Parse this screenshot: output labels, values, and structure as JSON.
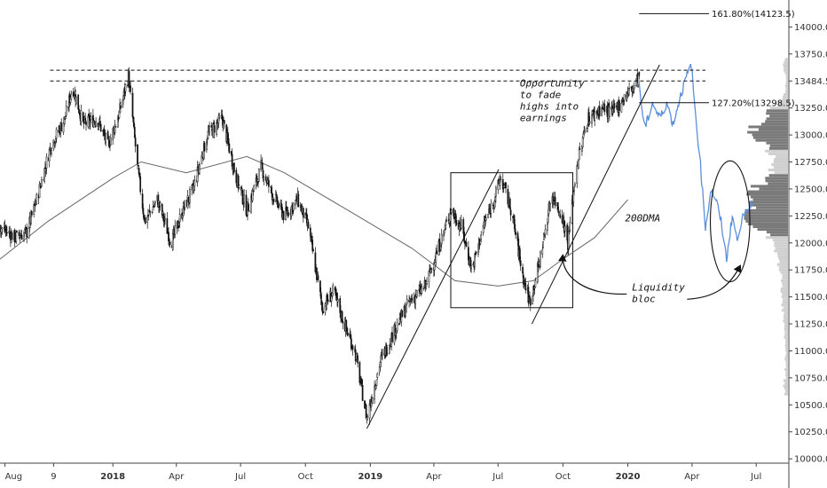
{
  "chart_data": {
    "type": "candlestick",
    "instrument_note": "",
    "x_tick_labels": [
      {
        "label": "Aug",
        "date": "2017-08-01",
        "bold": false
      },
      {
        "label": "9",
        "date": "2017-10-09",
        "bold": false
      },
      {
        "label": "2018",
        "date": "2018-01-01",
        "bold": true
      },
      {
        "label": "Apr",
        "date": "2018-04-01",
        "bold": false
      },
      {
        "label": "Jul",
        "date": "2018-07-01",
        "bold": false
      },
      {
        "label": "Oct",
        "date": "2018-10-01",
        "bold": false
      },
      {
        "label": "2019",
        "date": "2019-01-01",
        "bold": true
      },
      {
        "label": "Apr",
        "date": "2019-04-01",
        "bold": false
      },
      {
        "label": "Jul",
        "date": "2019-07-01",
        "bold": false
      },
      {
        "label": "Oct",
        "date": "2019-10-01",
        "bold": false
      },
      {
        "label": "2020",
        "date": "2020-01-01",
        "bold": true
      },
      {
        "label": "Apr",
        "date": "2020-04-01",
        "bold": false
      },
      {
        "label": "Jul",
        "date": "2020-07-01",
        "bold": false
      }
    ],
    "y_ticks": [
      10000,
      10250,
      10500,
      10750,
      11000,
      11250,
      11500,
      11750,
      12000,
      12250,
      12500,
      12750,
      13000,
      13250,
      13500,
      13750,
      14000
    ],
    "y_tick_labels": [
      "10000.0",
      "10250.0",
      "10500.0",
      "10750.0",
      "11000.0",
      "11250.0",
      "11500.0",
      "11750.0",
      "12000.0",
      "12250.0",
      "12500.0",
      "12750.0",
      "13000.0",
      "13250.0",
      "13484.5",
      "13750.0",
      "14000.0"
    ],
    "ylim": [
      9960,
      14250
    ],
    "xlim": [
      "2017-07-25",
      "2020-08-15"
    ],
    "price_path": [
      [
        "2017-07-25",
        12150
      ],
      [
        "2017-08-15",
        12050
      ],
      [
        "2017-09-01",
        12100
      ],
      [
        "2017-09-15",
        12400
      ],
      [
        "2017-10-05",
        12900
      ],
      [
        "2017-10-25",
        13150
      ],
      [
        "2017-11-05",
        13450
      ],
      [
        "2017-11-20",
        13100
      ],
      [
        "2017-12-10",
        13150
      ],
      [
        "2017-12-25",
        12900
      ],
      [
        "2018-01-10",
        13200
      ],
      [
        "2018-01-23",
        13550
      ],
      [
        "2018-02-05",
        12700
      ],
      [
        "2018-02-15",
        12200
      ],
      [
        "2018-03-05",
        12400
      ],
      [
        "2018-03-25",
        12000
      ],
      [
        "2018-04-10",
        12300
      ],
      [
        "2018-04-25",
        12500
      ],
      [
        "2018-05-15",
        13000
      ],
      [
        "2018-06-05",
        13150
      ],
      [
        "2018-06-25",
        12600
      ],
      [
        "2018-07-10",
        12300
      ],
      [
        "2018-07-30",
        12700
      ],
      [
        "2018-08-15",
        12450
      ],
      [
        "2018-09-01",
        12250
      ],
      [
        "2018-09-20",
        12400
      ],
      [
        "2018-10-05",
        12150
      ],
      [
        "2018-10-25",
        11400
      ],
      [
        "2018-11-10",
        11550
      ],
      [
        "2018-11-25",
        11250
      ],
      [
        "2018-12-10",
        11000
      ],
      [
        "2018-12-27",
        10380
      ],
      [
        "2019-01-15",
        10900
      ],
      [
        "2019-02-05",
        11200
      ],
      [
        "2019-02-25",
        11450
      ],
      [
        "2019-03-20",
        11600
      ],
      [
        "2019-04-10",
        12000
      ],
      [
        "2019-04-25",
        12300
      ],
      [
        "2019-05-10",
        12150
      ],
      [
        "2019-05-25",
        11750
      ],
      [
        "2019-06-10",
        12150
      ],
      [
        "2019-06-25",
        12400
      ],
      [
        "2019-07-05",
        12600
      ],
      [
        "2019-07-20",
        12300
      ],
      [
        "2019-08-05",
        11700
      ],
      [
        "2019-08-15",
        11450
      ],
      [
        "2019-08-28",
        11800
      ],
      [
        "2019-09-15",
        12450
      ],
      [
        "2019-09-30",
        12250
      ],
      [
        "2019-10-08",
        12000
      ],
      [
        "2019-10-20",
        12700
      ],
      [
        "2019-11-05",
        13150
      ],
      [
        "2019-11-25",
        13250
      ],
      [
        "2019-12-10",
        13200
      ],
      [
        "2019-12-27",
        13350
      ],
      [
        "2020-01-10",
        13450
      ],
      [
        "2020-01-17",
        13550
      ]
    ],
    "projection_path": [
      [
        "2020-01-17",
        13450
      ],
      [
        "2020-01-25",
        13050
      ],
      [
        "2020-02-05",
        13300
      ],
      [
        "2020-02-15",
        13150
      ],
      [
        "2020-02-25",
        13300
      ],
      [
        "2020-03-05",
        13100
      ],
      [
        "2020-03-15",
        13350
      ],
      [
        "2020-03-25",
        13550
      ],
      [
        "2020-03-31",
        13650
      ],
      [
        "2020-04-05",
        13250
      ],
      [
        "2020-04-12",
        12800
      ],
      [
        "2020-04-20",
        12150
      ],
      [
        "2020-04-28",
        12500
      ],
      [
        "2020-05-05",
        12400
      ],
      [
        "2020-05-12",
        12200
      ],
      [
        "2020-05-20",
        11850
      ],
      [
        "2020-05-28",
        12250
      ],
      [
        "2020-06-05",
        12000
      ],
      [
        "2020-06-12",
        12300
      ],
      [
        "2020-06-20",
        12250
      ],
      [
        "2020-06-25",
        12400
      ],
      [
        "2020-06-28",
        12300
      ]
    ],
    "ma200_path": [
      [
        "2017-07-25",
        11850
      ],
      [
        "2017-10-01",
        12200
      ],
      [
        "2018-01-01",
        12600
      ],
      [
        "2018-02-10",
        12750
      ],
      [
        "2018-04-15",
        12650
      ],
      [
        "2018-07-10",
        12800
      ],
      [
        "2018-09-01",
        12650
      ],
      [
        "2018-12-01",
        12300
      ],
      [
        "2019-03-01",
        11950
      ],
      [
        "2019-05-01",
        11650
      ],
      [
        "2019-07-01",
        11600
      ],
      [
        "2019-08-20",
        11650
      ],
      [
        "2019-10-01",
        11850
      ],
      [
        "2019-11-15",
        12050
      ],
      [
        "2020-01-01",
        12400
      ]
    ],
    "resistance_levels": [
      13600,
      13500
    ],
    "fibonacci": [
      {
        "label": "161.80%(14123.5)",
        "value": 14123.5
      },
      {
        "label": "127.20%(13298.5)",
        "value": 13298.5
      }
    ],
    "trendlines": [
      {
        "from": [
          "2018-12-27",
          10280
        ],
        "to": [
          "2019-07-02",
          12680
        ]
      },
      {
        "from": [
          "2019-08-18",
          11250
        ],
        "to": [
          "2020-02-15",
          13650
        ]
      }
    ],
    "range_box": {
      "from": [
        "2019-04-25",
        12650
      ],
      "to": [
        "2019-10-15",
        11400
      ]
    },
    "annotations": [
      {
        "lines": [
          "Opportunity",
          "to fade",
          "highs into",
          "earnings"
        ],
        "anchor": [
          "2019-08-01",
          13450
        ]
      },
      {
        "lines": [
          "200DMA"
        ],
        "anchor": [
          "2019-12-28",
          12200
        ]
      },
      {
        "lines": [
          "Liquidity",
          "bloc"
        ],
        "anchor": [
          "2020-01-07",
          11560
        ]
      }
    ],
    "liquidity_ellipse": {
      "center": [
        "2020-05-25",
        12200
      ],
      "rx_days": 28,
      "ry_value": 560
    },
    "volume_profile": "right-aligned horizontal histogram"
  }
}
